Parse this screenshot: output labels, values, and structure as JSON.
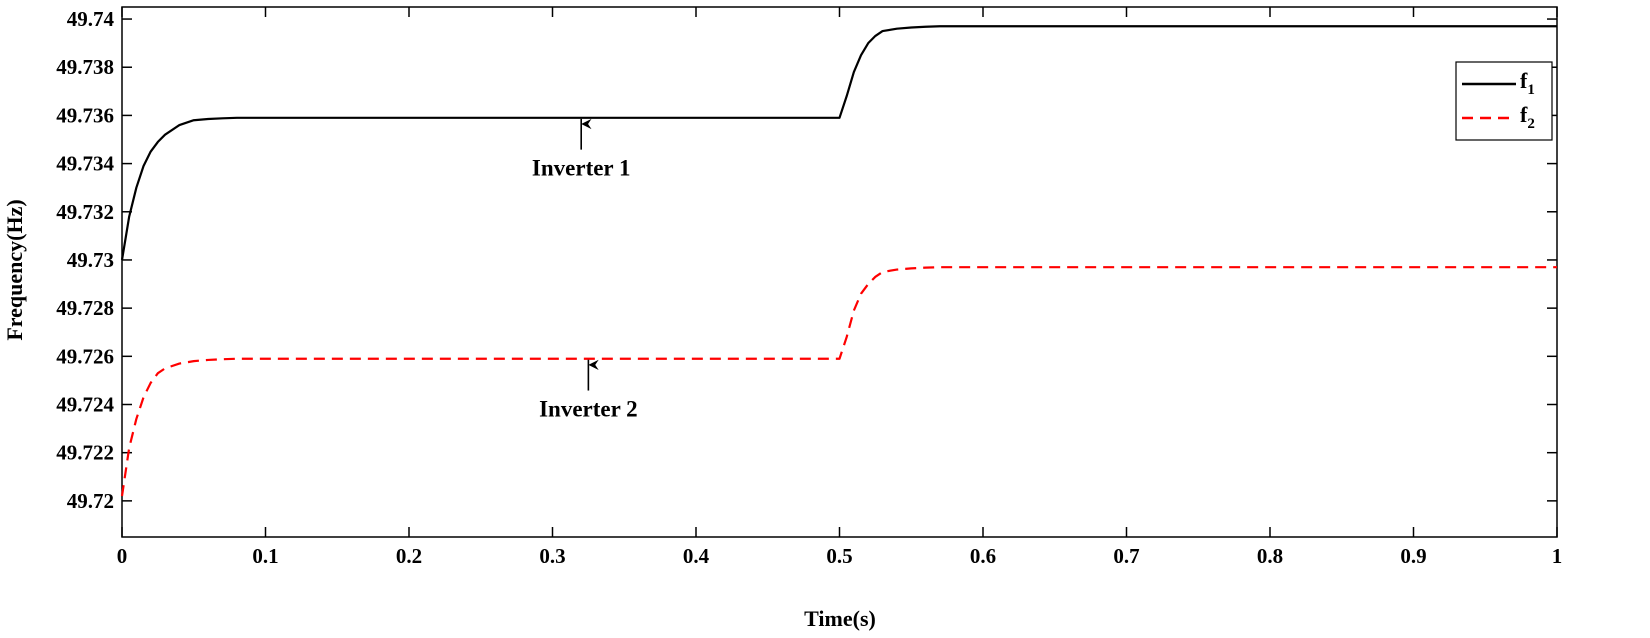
{
  "chart_data": {
    "type": "line",
    "title": "",
    "xlabel": "Time(s)",
    "ylabel": "Frequency(Hz)",
    "xlim": [
      0,
      1
    ],
    "ylim": [
      49.7185,
      49.7405
    ],
    "xticks": [
      0,
      0.1,
      0.2,
      0.3,
      0.4,
      0.5,
      0.6,
      0.7,
      0.8,
      0.9,
      1
    ],
    "xtick_labels": [
      "0",
      "0.1",
      "0.2",
      "0.3",
      "0.4",
      "0.5",
      "0.6",
      "0.7",
      "0.8",
      "0.9",
      "1"
    ],
    "yticks": [
      49.72,
      49.722,
      49.724,
      49.726,
      49.728,
      49.73,
      49.732,
      49.734,
      49.736,
      49.738,
      49.74
    ],
    "ytick_labels": [
      "49.72",
      "49.722",
      "49.724",
      "49.726",
      "49.728",
      "49.73",
      "49.732",
      "49.734",
      "49.736",
      "49.738",
      "49.74"
    ],
    "grid": false,
    "legend": "top-right",
    "series": [
      {
        "name": "f",
        "name_sub": "1",
        "color": "#000000",
        "style": "solid",
        "x": [
          0,
          0.005,
          0.01,
          0.015,
          0.02,
          0.025,
          0.03,
          0.04,
          0.05,
          0.06,
          0.07,
          0.08,
          0.1,
          0.2,
          0.3,
          0.4,
          0.5,
          0.505,
          0.51,
          0.515,
          0.52,
          0.525,
          0.53,
          0.54,
          0.55,
          0.56,
          0.57,
          0.6,
          0.7,
          0.8,
          0.9,
          1
        ],
        "values": [
          49.73,
          49.7318,
          49.733,
          49.7339,
          49.7345,
          49.7349,
          49.7352,
          49.7356,
          49.7358,
          49.73585,
          49.73588,
          49.7359,
          49.7359,
          49.7359,
          49.7359,
          49.7359,
          49.7359,
          49.7368,
          49.7378,
          49.7385,
          49.739,
          49.7393,
          49.7395,
          49.7396,
          49.73965,
          49.73968,
          49.7397,
          49.7397,
          49.7397,
          49.7397,
          49.7397,
          49.7397
        ]
      },
      {
        "name": "f",
        "name_sub": "2",
        "color": "#ff0000",
        "style": "dashed",
        "x": [
          0,
          0.005,
          0.01,
          0.015,
          0.02,
          0.025,
          0.03,
          0.04,
          0.05,
          0.06,
          0.07,
          0.08,
          0.1,
          0.2,
          0.3,
          0.4,
          0.5,
          0.505,
          0.51,
          0.515,
          0.52,
          0.525,
          0.53,
          0.54,
          0.55,
          0.56,
          0.57,
          0.6,
          0.7,
          0.8,
          0.9,
          1
        ],
        "values": [
          49.7202,
          49.7222,
          49.7234,
          49.7243,
          49.7249,
          49.7253,
          49.7255,
          49.7257,
          49.7258,
          49.72585,
          49.72588,
          49.7259,
          49.7259,
          49.7259,
          49.7259,
          49.7259,
          49.7259,
          49.7268,
          49.7279,
          49.7286,
          49.729,
          49.7293,
          49.7295,
          49.7296,
          49.72965,
          49.72968,
          49.7297,
          49.7297,
          49.7297,
          49.7297,
          49.7297,
          49.7297
        ]
      }
    ],
    "annotations": [
      {
        "text": "Inverter 1",
        "target_x": 0.32,
        "target_y": 49.7359,
        "text_y": 49.7335
      },
      {
        "text": "Inverter 2",
        "target_x": 0.325,
        "target_y": 49.7259,
        "text_y": 49.7235
      }
    ]
  }
}
